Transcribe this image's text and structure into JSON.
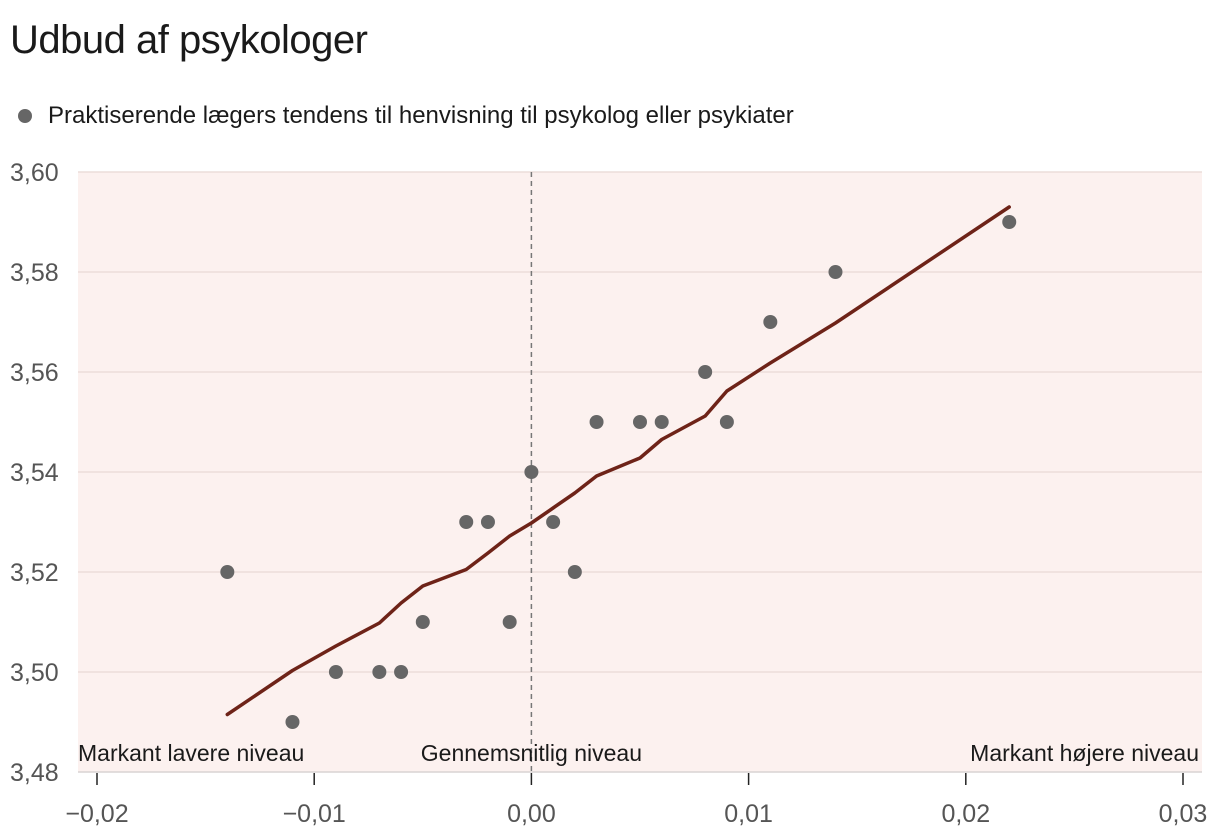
{
  "chart_data": {
    "type": "scatter",
    "title": "Udbud af psykologer",
    "legend": {
      "position": "top-left",
      "entries": [
        "Praktiserende lægers tendens til henvisning til psykolog eller psykiater"
      ]
    },
    "xlim": [
      -0.02,
      0.03
    ],
    "ylim": [
      3.48,
      3.6
    ],
    "xticks": [
      "−0,02",
      "−0,01",
      "0,00",
      "0,01",
      "0,02",
      "0,03"
    ],
    "xtick_values": [
      -0.02,
      -0.01,
      0.0,
      0.01,
      0.02,
      0.03
    ],
    "yticks": [
      "3,48",
      "3,50",
      "3,52",
      "3,54",
      "3,56",
      "3,58",
      "3,60"
    ],
    "ytick_values": [
      3.48,
      3.5,
      3.52,
      3.54,
      3.56,
      3.58,
      3.6
    ],
    "grid": true,
    "colors": {
      "points": "#666666",
      "trend": "#6e2318",
      "background": "#fcf1ef",
      "grid": "#ecdeda",
      "reference": "#777777"
    },
    "annotations": {
      "left": "Markant lavere niveau",
      "center": "Gennemsnitlig niveau",
      "right": "Markant højere niveau"
    },
    "reference_line_x": 0.0,
    "series": [
      {
        "name": "Praktiserende lægers tendens til henvisning til psykolog eller psykiater",
        "type": "scatter",
        "points": [
          [
            -0.014,
            3.52
          ],
          [
            -0.011,
            3.49
          ],
          [
            -0.009,
            3.5
          ],
          [
            -0.007,
            3.5
          ],
          [
            -0.006,
            3.5
          ],
          [
            -0.005,
            3.51
          ],
          [
            -0.003,
            3.53
          ],
          [
            -0.002,
            3.53
          ],
          [
            -0.001,
            3.51
          ],
          [
            0.0,
            3.54
          ],
          [
            0.001,
            3.53
          ],
          [
            0.002,
            3.52
          ],
          [
            0.003,
            3.55
          ],
          [
            0.005,
            3.55
          ],
          [
            0.006,
            3.55
          ],
          [
            0.008,
            3.56
          ],
          [
            0.009,
            3.55
          ],
          [
            0.011,
            3.57
          ],
          [
            0.014,
            3.58
          ],
          [
            0.022,
            3.59
          ]
        ]
      },
      {
        "type": "line",
        "points": [
          [
            -0.014,
            3.4915
          ],
          [
            -0.011,
            3.5003
          ],
          [
            -0.009,
            3.5052
          ],
          [
            -0.007,
            3.5098
          ],
          [
            -0.006,
            3.5138
          ],
          [
            -0.005,
            3.5172
          ],
          [
            -0.003,
            3.5205
          ],
          [
            -0.002,
            3.5238
          ],
          [
            -0.001,
            3.5272
          ],
          [
            0.0,
            3.5298
          ],
          [
            0.001,
            3.5328
          ],
          [
            0.002,
            3.5358
          ],
          [
            0.003,
            3.5392
          ],
          [
            0.005,
            3.5428
          ],
          [
            0.006,
            3.5465
          ],
          [
            0.008,
            3.5512
          ],
          [
            0.009,
            3.5562
          ],
          [
            0.011,
            3.5618
          ],
          [
            0.014,
            3.5698
          ],
          [
            0.022,
            3.593
          ]
        ]
      }
    ]
  }
}
